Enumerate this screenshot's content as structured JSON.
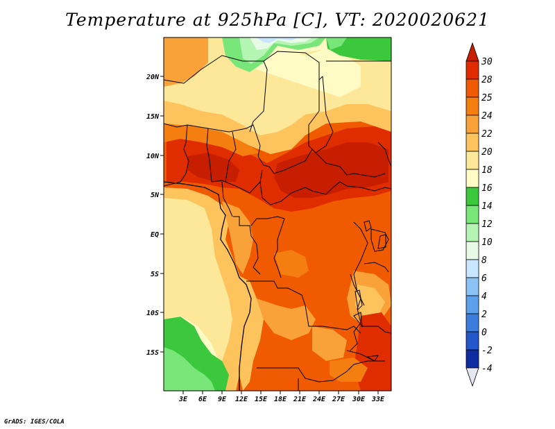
{
  "title": "Temperature at 925hPa [C], VT: 2020020621",
  "credit": "GrADS: IGES/COLA",
  "map": {
    "lat_labels": [
      "20N",
      "15N",
      "10N",
      "5N",
      "EQ",
      "5S",
      "10S",
      "15S"
    ],
    "lon_labels": [
      "3E",
      "6E",
      "9E",
      "12E",
      "15E",
      "18E",
      "21E",
      "24E",
      "27E",
      "30E",
      "33E"
    ]
  },
  "colorbar": {
    "labels": [
      "30",
      "28",
      "25",
      "24",
      "22",
      "20",
      "18",
      "16",
      "14",
      "12",
      "10",
      "8",
      "6",
      "4",
      "2",
      "0",
      "-2",
      "-4"
    ],
    "colors": {
      "above_30": "#c81e00",
      "28_30": "#e02d00",
      "25_28": "#f05a00",
      "24_25": "#f57e10",
      "22_24": "#f9a23a",
      "20_22": "#fdc45e",
      "18_20": "#fde89a",
      "16_18": "#fffbc4",
      "14_16": "#3cc83c",
      "12_14": "#78e678",
      "10_12": "#b4f5b4",
      "8_10": "#e6fae6",
      "6_8": "#c8e6ff",
      "4_6": "#8cc3f5",
      "2_4": "#5aa0eb",
      "0_2": "#3c7ddc",
      "neg2_0": "#2356c8",
      "neg4_neg2": "#0f2da0",
      "below_neg4": "#000a64",
      "triangle_low": "#e6e6f0"
    }
  }
}
